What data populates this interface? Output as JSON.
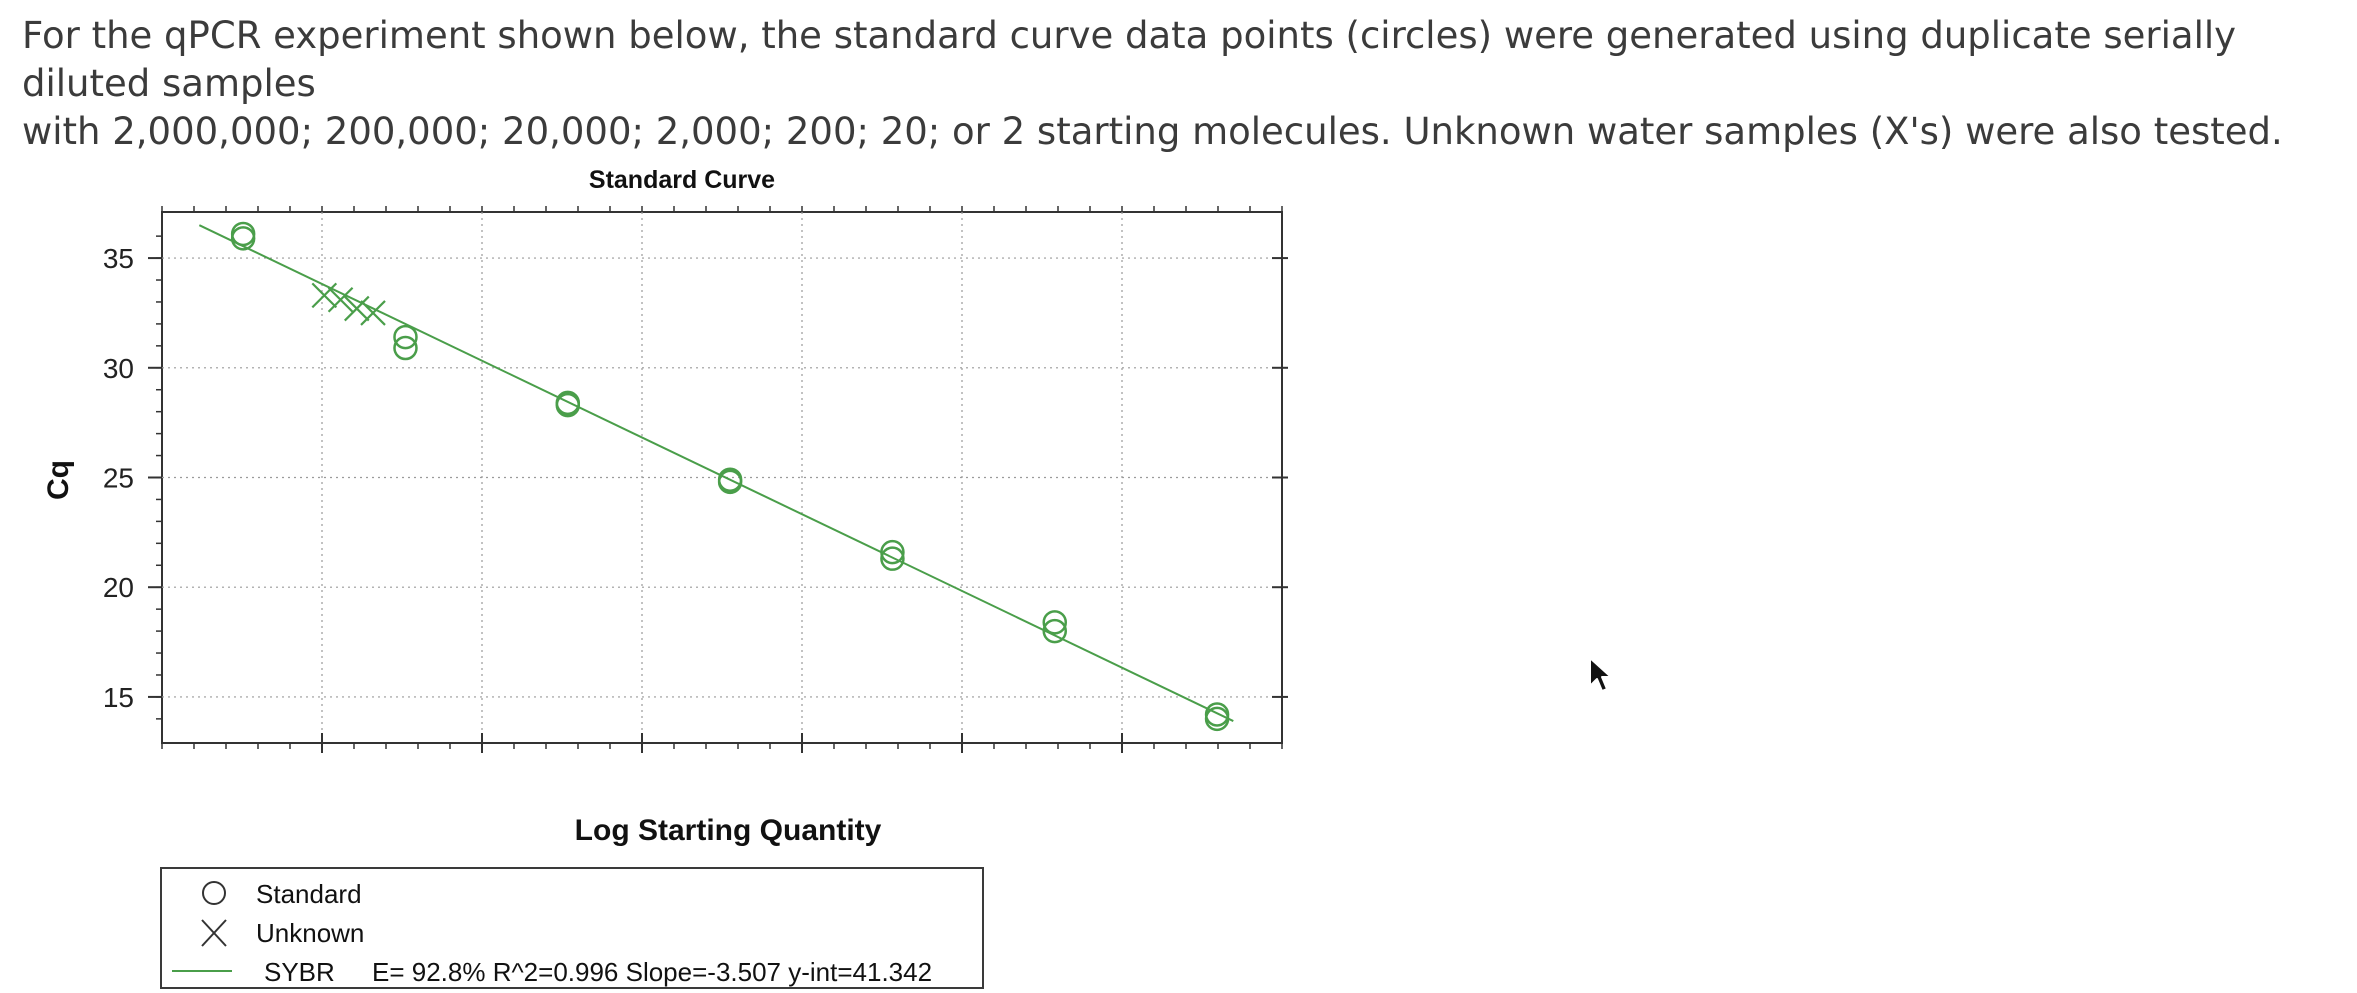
{
  "question": {
    "line1": "For the qPCR experiment shown below, the standard curve data points (circles) were generated using duplicate serially diluted samples",
    "line2": "with 2,000,000; 200,000; 20,000; 2,000; 200; 20; or 2 starting molecules. Unknown water samples (X's) were also tested."
  },
  "chart_data": {
    "type": "scatter",
    "title": "Standard Curve",
    "xlabel": "Log Starting Quantity",
    "ylabel": "Cq",
    "ylim": [
      12.9,
      37.1
    ],
    "xlim": [
      0.1,
      7.0
    ],
    "yticks": [
      15,
      20,
      25,
      30,
      35
    ],
    "grid": true,
    "series": [
      {
        "name": "Standard",
        "marker": "circle",
        "points": [
          {
            "x": 0.6,
            "y": 35.9
          },
          {
            "x": 0.6,
            "y": 36.1
          },
          {
            "x": 1.6,
            "y": 31.4
          },
          {
            "x": 1.6,
            "y": 30.9
          },
          {
            "x": 2.6,
            "y": 28.4
          },
          {
            "x": 2.6,
            "y": 28.3
          },
          {
            "x": 3.6,
            "y": 24.9
          },
          {
            "x": 3.6,
            "y": 24.8
          },
          {
            "x": 4.6,
            "y": 21.6
          },
          {
            "x": 4.6,
            "y": 21.3
          },
          {
            "x": 5.6,
            "y": 18.4
          },
          {
            "x": 5.6,
            "y": 18.0
          },
          {
            "x": 6.6,
            "y": 14.0
          },
          {
            "x": 6.6,
            "y": 14.2
          }
        ]
      },
      {
        "name": "Unknown",
        "marker": "x",
        "points": [
          {
            "x": 1.1,
            "y": 33.3
          },
          {
            "x": 1.2,
            "y": 33.1
          },
          {
            "x": 1.3,
            "y": 32.7
          },
          {
            "x": 1.4,
            "y": 32.5
          }
        ]
      },
      {
        "name": "SYBR",
        "marker": "line",
        "slope": -3.507,
        "intercept": 41.342,
        "x_range": [
          0.33,
          6.7
        ]
      }
    ],
    "legend": {
      "placement": "bottom-left",
      "entries": [
        {
          "label": "Standard",
          "stats": ""
        },
        {
          "label": "Unknown",
          "stats": ""
        },
        {
          "label": "SYBR",
          "stats": "E= 92.8% R^2=0.996 Slope=-3.507 y-int=41.342"
        }
      ]
    },
    "colors": {
      "series": "#4a9e4a",
      "axis": "#333333",
      "grid": "#9a9a9a"
    }
  }
}
